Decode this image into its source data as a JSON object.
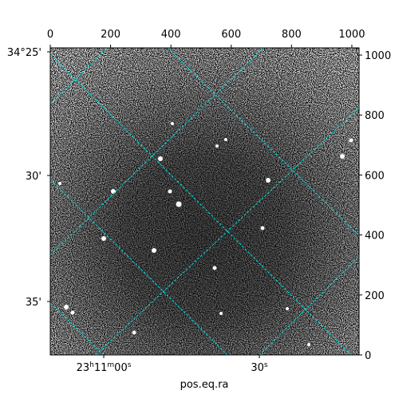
{
  "chart_data": {
    "type": "image",
    "xlabel": "pos.eq.ra",
    "xlim": [
      0,
      1024
    ],
    "ylim": [
      0,
      1024
    ],
    "xticks": [
      0,
      200,
      400,
      600,
      800,
      1000
    ],
    "yticks": [
      0,
      200,
      400,
      600,
      800,
      1000
    ],
    "ra_tick_labels": [
      "23h11m00s",
      "30s"
    ],
    "dec_tick_labels": [
      "34°25'",
      "30'",
      "35'"
    ]
  }
}
